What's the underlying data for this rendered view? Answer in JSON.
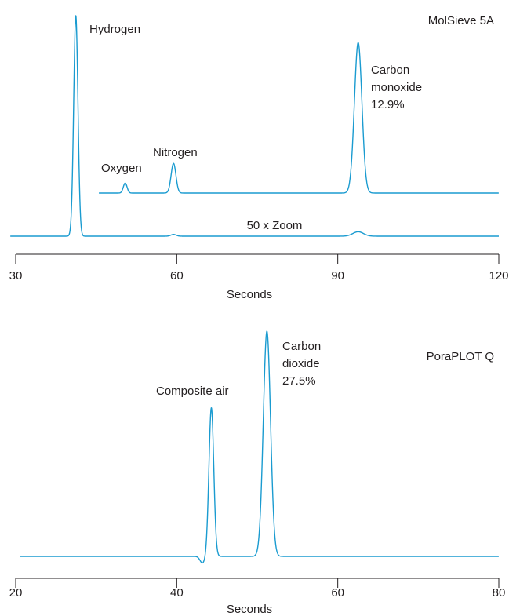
{
  "chart_data": [
    {
      "type": "line",
      "title": "MolSieve 5A",
      "xlabel": "Seconds",
      "ylabel": "",
      "xlim": [
        30,
        120
      ],
      "xticks": [
        30,
        60,
        90,
        120
      ],
      "grid": false,
      "series": [
        {
          "role": "main",
          "peaks": [
            {
              "x": 41.2,
              "height": 1.0,
              "width": 0.4
            },
            {
              "x": 59.4,
              "height": 0.008,
              "width": 0.5
            },
            {
              "x": 93.8,
              "height": 0.02,
              "width": 1.0
            }
          ]
        },
        {
          "name": "50 x Zoom",
          "role": "zoom",
          "x_start": 45.5,
          "peaks": [
            {
              "x": 50.4,
              "height": 0.047,
              "width": 0.35
            },
            {
              "x": 59.4,
              "height": 0.14,
              "width": 0.45
            },
            {
              "x": 93.8,
              "height": 0.71,
              "width": 0.7
            }
          ]
        }
      ],
      "annotations": {
        "hydrogen": "Hydrogen",
        "oxygen": "Oxygen",
        "nitrogen": "Nitrogen",
        "carbon_monoxide": [
          "Carbon",
          "monoxide",
          "12.9%"
        ],
        "zoom": "50 x Zoom"
      }
    },
    {
      "type": "line",
      "title": "PoraPLOT Q",
      "xlabel": "Seconds",
      "ylabel": "",
      "xlim": [
        20,
        80
      ],
      "xticks": [
        20,
        40,
        60,
        80
      ],
      "grid": false,
      "series": [
        {
          "role": "main",
          "peaks": [
            {
              "x": 43.2,
              "height": -0.03,
              "width": 0.3
            },
            {
              "x": 44.3,
              "height": 0.66,
              "width": 0.3
            },
            {
              "x": 51.2,
              "height": 1.0,
              "width": 0.45
            }
          ]
        }
      ],
      "annotations": {
        "composite_air": "Composite air",
        "carbon_dioxide": [
          "Carbon",
          "dioxide",
          "27.5%"
        ]
      }
    }
  ]
}
